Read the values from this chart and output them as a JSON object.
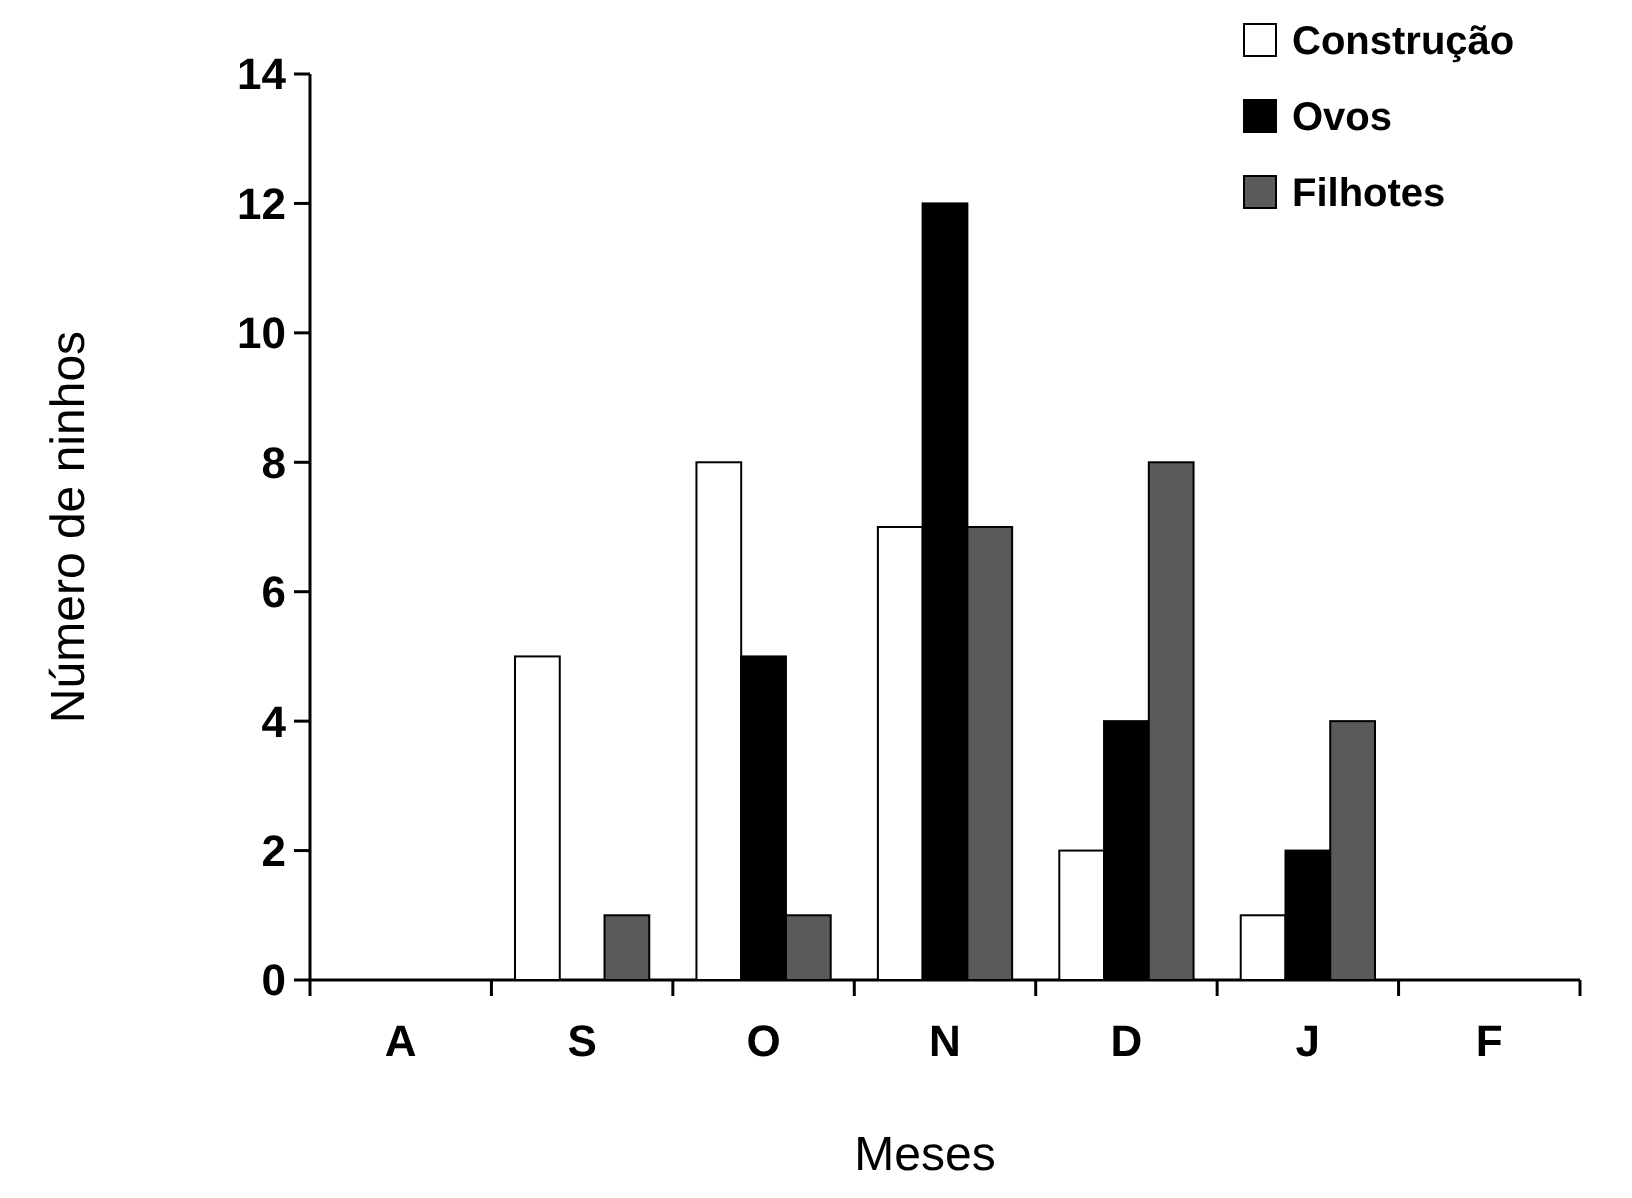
{
  "chart_data": {
    "type": "bar",
    "xlabel": "Meses",
    "ylabel": "Número de ninhos",
    "categories": [
      "A",
      "S",
      "O",
      "N",
      "D",
      "J",
      "F"
    ],
    "series": [
      {
        "name": "Construção",
        "color": "#ffffff",
        "values": [
          0,
          5,
          8,
          7,
          2,
          1,
          0
        ]
      },
      {
        "name": "Ovos",
        "color": "#000000",
        "values": [
          0,
          0,
          5,
          12,
          4,
          2,
          0
        ]
      },
      {
        "name": "Filhotes",
        "color": "#5a5a5a",
        "values": [
          0,
          1,
          1,
          7,
          8,
          4,
          0
        ]
      }
    ],
    "ylim": [
      0,
      14
    ],
    "yticks": [
      0,
      2,
      4,
      6,
      8,
      10,
      12,
      14
    ],
    "grid": false,
    "legend": "top right"
  }
}
